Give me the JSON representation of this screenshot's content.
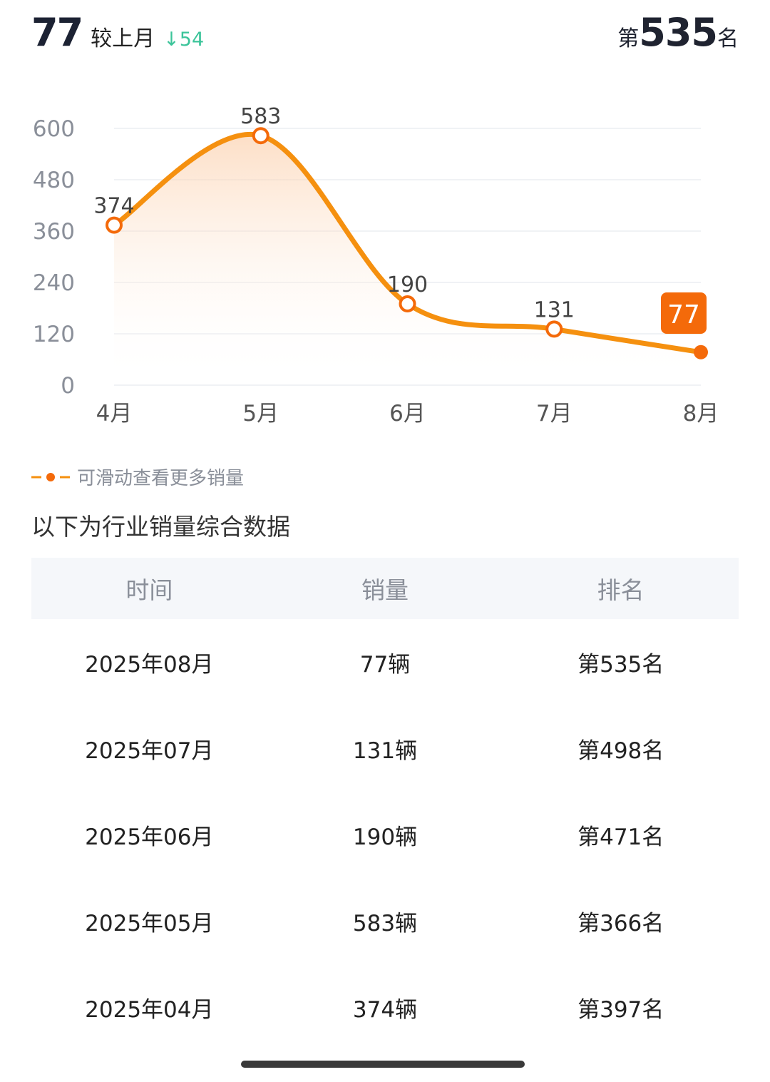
{
  "header": {
    "value": "77",
    "compare_label": "较上月",
    "delta": "54",
    "delta_direction": "down",
    "rank_prefix": "第",
    "rank": "535",
    "rank_suffix": "名"
  },
  "colors": {
    "line": "#f5900f",
    "badge": "#f46a0a",
    "delta": "#3cc49a"
  },
  "chart_data": {
    "type": "line",
    "categories": [
      "4月",
      "5月",
      "6月",
      "7月",
      "8月"
    ],
    "values": [
      374,
      583,
      190,
      131,
      77
    ],
    "ylim": [
      0,
      600
    ],
    "yticks": [
      0,
      120,
      240,
      360,
      480,
      600
    ],
    "grid": true,
    "highlight": {
      "category": "8月",
      "value": "77"
    }
  },
  "hint": "可滑动查看更多销量",
  "subtitle": "以下为行业销量综合数据",
  "table": {
    "headers": [
      "时间",
      "销量",
      "排名"
    ],
    "rows": [
      [
        "2025年08月",
        "77辆",
        "第535名"
      ],
      [
        "2025年07月",
        "131辆",
        "第498名"
      ],
      [
        "2025年06月",
        "190辆",
        "第471名"
      ],
      [
        "2025年05月",
        "583辆",
        "第366名"
      ],
      [
        "2025年04月",
        "374辆",
        "第397名"
      ]
    ]
  }
}
